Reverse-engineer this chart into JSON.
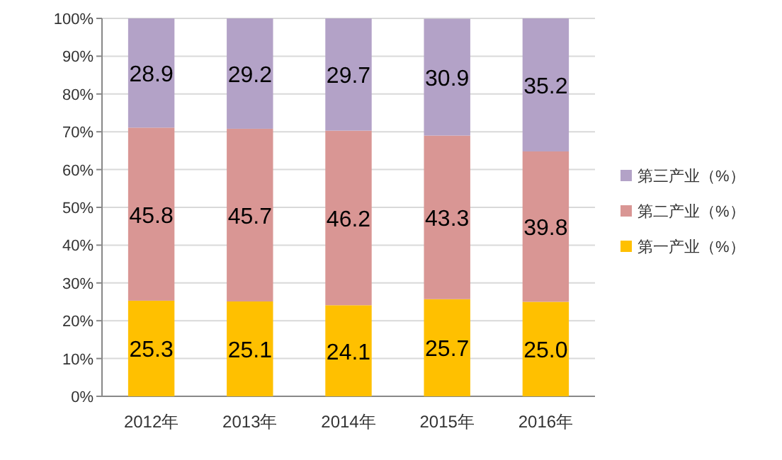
{
  "chart_data": {
    "type": "bar",
    "stacked": true,
    "categories": [
      "2012年",
      "2013年",
      "2014年",
      "2015年",
      "2016年"
    ],
    "series": [
      {
        "name": "第一产业（%）",
        "color": "#ffc000",
        "values": [
          25.3,
          25.1,
          24.1,
          25.7,
          25.0
        ],
        "value_labels": [
          "25.3",
          "25.1",
          "24.1",
          "25.7",
          "25.0"
        ]
      },
      {
        "name": "第二产业（%）",
        "color": "#d99694",
        "values": [
          45.8,
          45.7,
          46.2,
          43.3,
          39.8
        ],
        "value_labels": [
          "45.8",
          "45.7",
          "46.2",
          "43.3",
          "39.8"
        ]
      },
      {
        "name": "第三产业（%）",
        "color": "#b3a2c7",
        "values": [
          28.9,
          29.2,
          29.7,
          30.9,
          35.2
        ],
        "value_labels": [
          "28.9",
          "29.2",
          "29.7",
          "30.9",
          "35.2"
        ]
      }
    ],
    "ylim": [
      0,
      100
    ],
    "yticks": [
      {
        "value": 0,
        "label": "0%"
      },
      {
        "value": 10,
        "label": "10%"
      },
      {
        "value": 20,
        "label": "20%"
      },
      {
        "value": 30,
        "label": "30%"
      },
      {
        "value": 40,
        "label": "40%"
      },
      {
        "value": 50,
        "label": "50%"
      },
      {
        "value": 60,
        "label": "60%"
      },
      {
        "value": 70,
        "label": "70%"
      },
      {
        "value": 80,
        "label": "80%"
      },
      {
        "value": 90,
        "label": "90%"
      },
      {
        "value": 100,
        "label": "100%"
      }
    ],
    "grid": "y",
    "legend": "right"
  }
}
